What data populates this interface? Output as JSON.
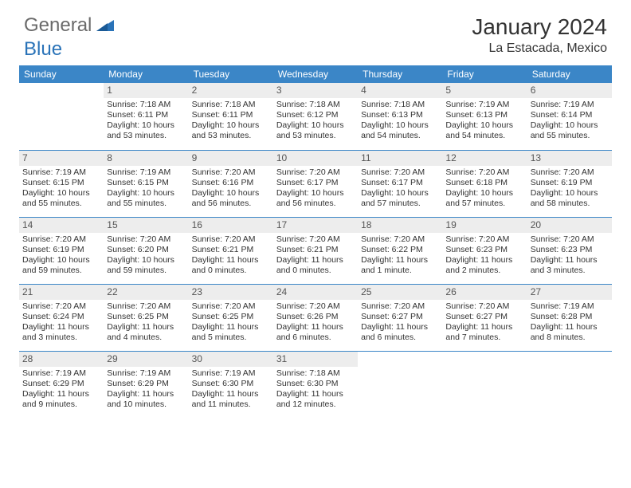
{
  "brand": {
    "part1": "General",
    "part2": "Blue"
  },
  "title": "January 2024",
  "location": "La Estacada, Mexico",
  "colors": {
    "header_bg": "#3b86c7",
    "header_fg": "#ffffff",
    "daynum_bg": "#ededed",
    "border": "#3b86c7",
    "brand_gray": "#6a6a6a",
    "brand_blue": "#2a73b8"
  },
  "day_headers": [
    "Sunday",
    "Monday",
    "Tuesday",
    "Wednesday",
    "Thursday",
    "Friday",
    "Saturday"
  ],
  "weeks": [
    [
      null,
      {
        "n": "1",
        "sunrise": "Sunrise: 7:18 AM",
        "sunset": "Sunset: 6:11 PM",
        "daylight": "Daylight: 10 hours and 53 minutes."
      },
      {
        "n": "2",
        "sunrise": "Sunrise: 7:18 AM",
        "sunset": "Sunset: 6:11 PM",
        "daylight": "Daylight: 10 hours and 53 minutes."
      },
      {
        "n": "3",
        "sunrise": "Sunrise: 7:18 AM",
        "sunset": "Sunset: 6:12 PM",
        "daylight": "Daylight: 10 hours and 53 minutes."
      },
      {
        "n": "4",
        "sunrise": "Sunrise: 7:18 AM",
        "sunset": "Sunset: 6:13 PM",
        "daylight": "Daylight: 10 hours and 54 minutes."
      },
      {
        "n": "5",
        "sunrise": "Sunrise: 7:19 AM",
        "sunset": "Sunset: 6:13 PM",
        "daylight": "Daylight: 10 hours and 54 minutes."
      },
      {
        "n": "6",
        "sunrise": "Sunrise: 7:19 AM",
        "sunset": "Sunset: 6:14 PM",
        "daylight": "Daylight: 10 hours and 55 minutes."
      }
    ],
    [
      {
        "n": "7",
        "sunrise": "Sunrise: 7:19 AM",
        "sunset": "Sunset: 6:15 PM",
        "daylight": "Daylight: 10 hours and 55 minutes."
      },
      {
        "n": "8",
        "sunrise": "Sunrise: 7:19 AM",
        "sunset": "Sunset: 6:15 PM",
        "daylight": "Daylight: 10 hours and 55 minutes."
      },
      {
        "n": "9",
        "sunrise": "Sunrise: 7:20 AM",
        "sunset": "Sunset: 6:16 PM",
        "daylight": "Daylight: 10 hours and 56 minutes."
      },
      {
        "n": "10",
        "sunrise": "Sunrise: 7:20 AM",
        "sunset": "Sunset: 6:17 PM",
        "daylight": "Daylight: 10 hours and 56 minutes."
      },
      {
        "n": "11",
        "sunrise": "Sunrise: 7:20 AM",
        "sunset": "Sunset: 6:17 PM",
        "daylight": "Daylight: 10 hours and 57 minutes."
      },
      {
        "n": "12",
        "sunrise": "Sunrise: 7:20 AM",
        "sunset": "Sunset: 6:18 PM",
        "daylight": "Daylight: 10 hours and 57 minutes."
      },
      {
        "n": "13",
        "sunrise": "Sunrise: 7:20 AM",
        "sunset": "Sunset: 6:19 PM",
        "daylight": "Daylight: 10 hours and 58 minutes."
      }
    ],
    [
      {
        "n": "14",
        "sunrise": "Sunrise: 7:20 AM",
        "sunset": "Sunset: 6:19 PM",
        "daylight": "Daylight: 10 hours and 59 minutes."
      },
      {
        "n": "15",
        "sunrise": "Sunrise: 7:20 AM",
        "sunset": "Sunset: 6:20 PM",
        "daylight": "Daylight: 10 hours and 59 minutes."
      },
      {
        "n": "16",
        "sunrise": "Sunrise: 7:20 AM",
        "sunset": "Sunset: 6:21 PM",
        "daylight": "Daylight: 11 hours and 0 minutes."
      },
      {
        "n": "17",
        "sunrise": "Sunrise: 7:20 AM",
        "sunset": "Sunset: 6:21 PM",
        "daylight": "Daylight: 11 hours and 0 minutes."
      },
      {
        "n": "18",
        "sunrise": "Sunrise: 7:20 AM",
        "sunset": "Sunset: 6:22 PM",
        "daylight": "Daylight: 11 hours and 1 minute."
      },
      {
        "n": "19",
        "sunrise": "Sunrise: 7:20 AM",
        "sunset": "Sunset: 6:23 PM",
        "daylight": "Daylight: 11 hours and 2 minutes."
      },
      {
        "n": "20",
        "sunrise": "Sunrise: 7:20 AM",
        "sunset": "Sunset: 6:23 PM",
        "daylight": "Daylight: 11 hours and 3 minutes."
      }
    ],
    [
      {
        "n": "21",
        "sunrise": "Sunrise: 7:20 AM",
        "sunset": "Sunset: 6:24 PM",
        "daylight": "Daylight: 11 hours and 3 minutes."
      },
      {
        "n": "22",
        "sunrise": "Sunrise: 7:20 AM",
        "sunset": "Sunset: 6:25 PM",
        "daylight": "Daylight: 11 hours and 4 minutes."
      },
      {
        "n": "23",
        "sunrise": "Sunrise: 7:20 AM",
        "sunset": "Sunset: 6:25 PM",
        "daylight": "Daylight: 11 hours and 5 minutes."
      },
      {
        "n": "24",
        "sunrise": "Sunrise: 7:20 AM",
        "sunset": "Sunset: 6:26 PM",
        "daylight": "Daylight: 11 hours and 6 minutes."
      },
      {
        "n": "25",
        "sunrise": "Sunrise: 7:20 AM",
        "sunset": "Sunset: 6:27 PM",
        "daylight": "Daylight: 11 hours and 6 minutes."
      },
      {
        "n": "26",
        "sunrise": "Sunrise: 7:20 AM",
        "sunset": "Sunset: 6:27 PM",
        "daylight": "Daylight: 11 hours and 7 minutes."
      },
      {
        "n": "27",
        "sunrise": "Sunrise: 7:19 AM",
        "sunset": "Sunset: 6:28 PM",
        "daylight": "Daylight: 11 hours and 8 minutes."
      }
    ],
    [
      {
        "n": "28",
        "sunrise": "Sunrise: 7:19 AM",
        "sunset": "Sunset: 6:29 PM",
        "daylight": "Daylight: 11 hours and 9 minutes."
      },
      {
        "n": "29",
        "sunrise": "Sunrise: 7:19 AM",
        "sunset": "Sunset: 6:29 PM",
        "daylight": "Daylight: 11 hours and 10 minutes."
      },
      {
        "n": "30",
        "sunrise": "Sunrise: 7:19 AM",
        "sunset": "Sunset: 6:30 PM",
        "daylight": "Daylight: 11 hours and 11 minutes."
      },
      {
        "n": "31",
        "sunrise": "Sunrise: 7:18 AM",
        "sunset": "Sunset: 6:30 PM",
        "daylight": "Daylight: 11 hours and 12 minutes."
      },
      null,
      null,
      null
    ]
  ]
}
